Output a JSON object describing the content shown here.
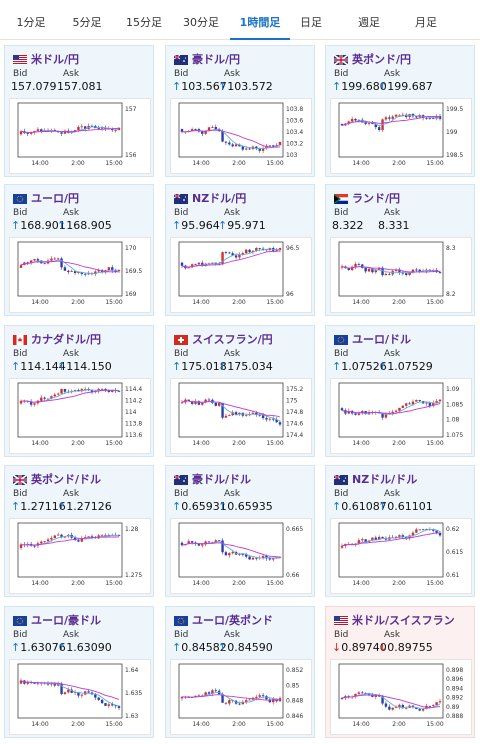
{
  "tabs": [
    {
      "label": "1分足",
      "active": false
    },
    {
      "label": "5分足",
      "active": false
    },
    {
      "label": "15分足",
      "active": false
    },
    {
      "label": "30分足",
      "active": false
    },
    {
      "label": "1時間足",
      "active": true
    },
    {
      "label": "日足",
      "active": false
    },
    {
      "label": "週足",
      "active": false
    },
    {
      "label": "月足",
      "active": false
    }
  ],
  "colors": {
    "accent": "#1a73c8",
    "up_candle": "#d0312d",
    "down_candle": "#2c3fa8",
    "ma_fast": "#5ab0dc",
    "ma_slow": "#c33ad6",
    "up_arrow": "#1a73c8",
    "down_arrow": "#d02a2a"
  },
  "cards": [
    {
      "pair": "米ドル/円",
      "flag": "us",
      "bid_label": "Bid",
      "ask_label": "Ask",
      "bid": "157.079",
      "ask": "157.081",
      "dir": "",
      "yticks": [
        "157",
        "156"
      ],
      "xticks": [
        "14:00",
        "2:00",
        "15:00"
      ],
      "seed": 3
    },
    {
      "pair": "豪ドル/円",
      "flag": "au",
      "bid_label": "Bid",
      "ask_label": "Ask",
      "bid": "103.567",
      "ask": "103.572",
      "dir": "up",
      "yticks": [
        "103.8",
        "103.6",
        "103.4",
        "103.2",
        "103"
      ],
      "xticks": [
        "14:00",
        "2:00",
        "15:00"
      ],
      "seed": 7
    },
    {
      "pair": "英ポンド/円",
      "flag": "gb",
      "bid_label": "Bid",
      "ask_label": "Ask",
      "bid": "199.680",
      "ask": "199.687",
      "dir": "up",
      "yticks": [
        "199.5",
        "199",
        "198.5"
      ],
      "xticks": [
        "14:00",
        "2:00",
        "15:00"
      ],
      "seed": 11
    },
    {
      "pair": "ユーロ/円",
      "flag": "eu",
      "bid_label": "Bid",
      "ask_label": "Ask",
      "bid": "168.901",
      "ask": "168.905",
      "dir": "up",
      "yticks": [
        "170",
        "169.5",
        "169"
      ],
      "xticks": [
        "14:00",
        "2:00",
        "15:00"
      ],
      "seed": 13
    },
    {
      "pair": "NZドル/円",
      "flag": "nz",
      "bid_label": "Bid",
      "ask_label": "Ask",
      "bid": "95.964",
      "ask": "95.971",
      "dir": "up",
      "yticks": [
        "96.5",
        "96"
      ],
      "xticks": [
        "14:00",
        "2:00",
        "15:00"
      ],
      "seed": 17
    },
    {
      "pair": "ランド/円",
      "flag": "za",
      "bid_label": "Bid",
      "ask_label": "Ask",
      "bid": "8.322",
      "ask": "8.331",
      "dir": "",
      "yticks": [
        "8.3",
        "8.2"
      ],
      "xticks": [
        "14:00",
        "2:00",
        "15:00"
      ],
      "seed": 19
    },
    {
      "pair": "カナダドル/円",
      "flag": "ca",
      "bid_label": "Bid",
      "ask_label": "Ask",
      "bid": "114.144",
      "ask": "114.150",
      "dir": "up",
      "yticks": [
        "114.4",
        "114.2",
        "114",
        "113.8",
        "113.6"
      ],
      "xticks": [
        "14:00",
        "2:00",
        "15:00"
      ],
      "seed": 23
    },
    {
      "pair": "スイスフラン/円",
      "flag": "ch",
      "bid_label": "Bid",
      "ask_label": "Ask",
      "bid": "175.018",
      "ask": "175.034",
      "dir": "up",
      "yticks": [
        "175.2",
        "175",
        "174.8",
        "174.6",
        "174.4"
      ],
      "xticks": [
        "14:00",
        "2:00",
        "15:00"
      ],
      "seed": 29
    },
    {
      "pair": "ユーロ/ドル",
      "flag": "eu",
      "bid_label": "Bid",
      "ask_label": "Ask",
      "bid": "1.07526",
      "ask": "1.07529",
      "dir": "up",
      "yticks": [
        "1.09",
        "1.085",
        "1.08",
        "1.075"
      ],
      "xticks": [
        "14:00",
        "2:00",
        "15:00"
      ],
      "seed": 31
    },
    {
      "pair": "英ポンド/ドル",
      "flag": "gb",
      "bid_label": "Bid",
      "ask_label": "Ask",
      "bid": "1.27116",
      "ask": "1.27126",
      "dir": "up",
      "yticks": [
        "1.28",
        "1.275"
      ],
      "xticks": [
        "14:00",
        "2:00",
        "15:00"
      ],
      "seed": 37
    },
    {
      "pair": "豪ドル/ドル",
      "flag": "au",
      "bid_label": "Bid",
      "ask_label": "Ask",
      "bid": "0.65931",
      "ask": "0.65935",
      "dir": "up",
      "yticks": [
        "0.665",
        "0.66"
      ],
      "xticks": [
        "14:00",
        "2:00",
        "15:00"
      ],
      "seed": 41
    },
    {
      "pair": "NZドル/ドル",
      "flag": "nz",
      "bid_label": "Bid",
      "ask_label": "Ask",
      "bid": "0.61087",
      "ask": "0.61101",
      "dir": "up",
      "yticks": [
        "0.62",
        "0.615",
        "0.61"
      ],
      "xticks": [
        "14:00",
        "2:00",
        "15:00"
      ],
      "seed": 43
    },
    {
      "pair": "ユーロ/豪ドル",
      "flag": "eu",
      "bid_label": "Bid",
      "ask_label": "Ask",
      "bid": "1.63076",
      "ask": "1.63090",
      "dir": "up",
      "yticks": [
        "1.64",
        "1.635",
        "1.63"
      ],
      "xticks": [
        "14:00",
        "2:00",
        "15:00"
      ],
      "seed": 47
    },
    {
      "pair": "ユーロ/英ポンド",
      "flag": "eu",
      "bid_label": "Bid",
      "ask_label": "Ask",
      "bid": "0.84582",
      "ask": "0.84590",
      "dir": "up",
      "yticks": [
        "0.852",
        "0.85",
        "0.848",
        "0.846"
      ],
      "xticks": [
        "14:00",
        "2:00",
        "15:00"
      ],
      "seed": 53
    },
    {
      "pair": "米ドル/スイスフラン",
      "flag": "us",
      "bid_label": "Bid",
      "ask_label": "Ask",
      "bid": "0.89740",
      "ask": "0.89755",
      "dir": "down",
      "yticks": [
        "0.898",
        "0.896",
        "0.894",
        "0.892",
        "0.89",
        "0.888"
      ],
      "xticks": [
        "14:00",
        "2:00",
        "15:00"
      ],
      "seed": 59
    }
  ]
}
